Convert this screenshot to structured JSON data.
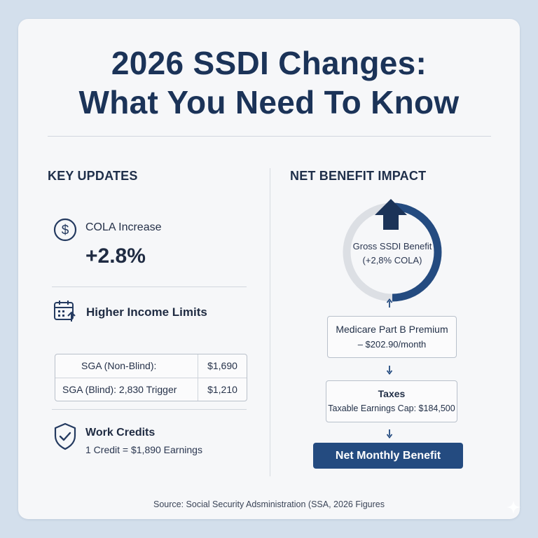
{
  "title": {
    "line1": "2026 SSDI Changes:",
    "line2": "What You Need To Know"
  },
  "left": {
    "heading": "KEY UPDATES",
    "cola": {
      "label": "COLA Increase",
      "value": "+2.8%"
    },
    "income": {
      "label": "Higher Income Limits"
    },
    "table": [
      {
        "label": "SGA (Non-Blind):",
        "value": "$1,690"
      },
      {
        "label": "SGA (Blind): 2,830  Trigger",
        "value": "$1,210"
      }
    ],
    "credits": {
      "label": "Work Credits",
      "detail": "1 Credit = $1,890 Earnings"
    }
  },
  "right": {
    "heading": "NET BENEFIT IMPACT",
    "gauge": {
      "line1": "Gross SSDI Benefit",
      "line2": "(+2,8% COLA)",
      "fill_fraction": 0.5
    },
    "medicare": {
      "title": "Medicare Part B Premium",
      "detail": "– $202.90/month"
    },
    "taxes": {
      "title": "Taxes",
      "detail": "Taxable Earnings Cap: $184,500"
    },
    "net": {
      "label": "Net Monthly Benefit"
    }
  },
  "source": "Source: Social Security Adsministration (SSA, 2026 Figures",
  "colors": {
    "navy": "#1b3358",
    "accent_blue": "#244b80",
    "gauge_track": "#dcdfe4",
    "background": "#d3dfec"
  }
}
